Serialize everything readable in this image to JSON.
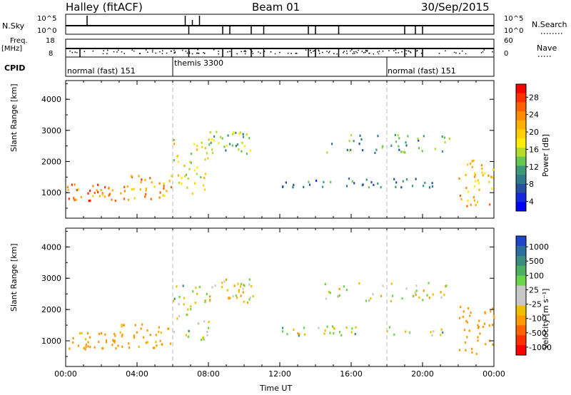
{
  "header": {
    "station": "Halley (fitACF)",
    "beam": "Beam 01",
    "date": "30/Sep/2015"
  },
  "strips": {
    "nsky_label": "N.Sky",
    "nsky_ticks": [
      "10^5",
      "10^0"
    ],
    "nsearch_label": "N.Search",
    "nsearch_ticks": [
      "10^5",
      "10^0"
    ],
    "freq_label_1": "Freq.",
    "freq_label_2": "[MHz]",
    "freq_ticks": [
      "18",
      "8"
    ],
    "nave_label": "Nave",
    "nave_ticks": [
      "60",
      "0"
    ],
    "cpid_label": "CPID",
    "cpid_segments": [
      "normal (fast) 151",
      "themis 3300",
      "normal (fast) 151"
    ]
  },
  "power_colorbar": {
    "label": "Power [dB]",
    "ticks": [
      "28",
      "24",
      "20",
      "16",
      "12",
      "8",
      "4"
    ],
    "colors": [
      "#ff0000",
      "#ff3000",
      "#ff6000",
      "#ff8c00",
      "#ffb000",
      "#ffd000",
      "#ffee00",
      "#b4dc28",
      "#64c850",
      "#3c9a78",
      "#2e7a8c",
      "#2850a0",
      "#1428dc",
      "#0000ff"
    ]
  },
  "velocity_colorbar": {
    "label": "Velocity [m s⁻¹]",
    "ticks": [
      "1000",
      "500",
      "100",
      "25",
      "-25",
      "-100",
      "-500",
      "-1000"
    ],
    "colors": [
      "#2046c8",
      "#2a6ea0",
      "#3a8c80",
      "#4cb060",
      "#6ad44a",
      "#c8c8c8",
      "#c8c8c8",
      "#f0c000",
      "#ff9a00",
      "#ff6400",
      "#ff3000",
      "#ff0000"
    ]
  },
  "axes": {
    "ylabel": "Slant Range [km]",
    "xlabel": "Time UT",
    "yticks": [
      "4000",
      "3000",
      "2000",
      "1000"
    ],
    "xticks": [
      "00:00",
      "04:00",
      "08:00",
      "12:00",
      "16:00",
      "20:00",
      "00:00"
    ]
  },
  "chart_data": [
    {
      "type": "heatmap",
      "title": "Power",
      "xlabel": "Time UT",
      "ylabel": "Slant Range [km]",
      "xlim": [
        "00:00",
        "24:00"
      ],
      "ylim": [
        180,
        4600
      ],
      "colorbar_label": "Power [dB]",
      "colorbar_range": [
        0,
        30
      ],
      "dashed_time_markers": [
        "06:00",
        "18:00"
      ],
      "regions": [
        {
          "t_start": 0.0,
          "t_end": 3.0,
          "r_low": 750,
          "r_high": 1300,
          "dominant_power_db": 24
        },
        {
          "t_start": 3.0,
          "t_end": 6.0,
          "r_low": 800,
          "r_high": 1600,
          "dominant_power_db": 22
        },
        {
          "t_start": 6.0,
          "t_end": 8.0,
          "r_low": 1000,
          "r_high": 2800,
          "dominant_power_db": 16
        },
        {
          "t_start": 8.0,
          "t_end": 10.5,
          "r_low": 2200,
          "r_high": 3000,
          "dominant_power_db": 12
        },
        {
          "t_start": 12.0,
          "t_end": 21.5,
          "r_low": 1200,
          "r_high": 1500,
          "dominant_power_db": 8
        },
        {
          "t_start": 14.5,
          "t_end": 21.5,
          "r_low": 2300,
          "r_high": 2900,
          "dominant_power_db": 10
        },
        {
          "t_start": 22.0,
          "t_end": 24.0,
          "r_low": 600,
          "r_high": 2200,
          "dominant_power_db": 20
        }
      ]
    },
    {
      "type": "heatmap",
      "title": "Velocity",
      "xlabel": "Time UT",
      "ylabel": "Slant Range [km]",
      "xlim": [
        "00:00",
        "24:00"
      ],
      "ylim": [
        180,
        4600
      ],
      "colorbar_label": "Velocity [m s⁻¹]",
      "colorbar_range": [
        -1000,
        1000
      ],
      "dashed_time_markers": [
        "06:00",
        "18:00"
      ],
      "regions": [
        {
          "t_start": 0.0,
          "t_end": 3.0,
          "r_low": 750,
          "r_high": 1300,
          "dominant_velocity": -200
        },
        {
          "t_start": 3.0,
          "t_end": 6.0,
          "r_low": 800,
          "r_high": 1600,
          "dominant_velocity": -150
        },
        {
          "t_start": 6.0,
          "t_end": 8.0,
          "r_low": 1000,
          "r_high": 2800,
          "dominant_velocity": 0
        },
        {
          "t_start": 8.0,
          "t_end": 10.5,
          "r_low": 2200,
          "r_high": 3000,
          "dominant_velocity": -50
        },
        {
          "t_start": 12.0,
          "t_end": 21.5,
          "r_low": 1200,
          "r_high": 1500,
          "dominant_velocity": 0
        },
        {
          "t_start": 14.5,
          "t_end": 21.5,
          "r_low": 2300,
          "r_high": 2900,
          "dominant_velocity": -20
        },
        {
          "t_start": 22.0,
          "t_end": 24.0,
          "r_low": 600,
          "r_high": 2200,
          "dominant_velocity": -300
        }
      ]
    }
  ]
}
